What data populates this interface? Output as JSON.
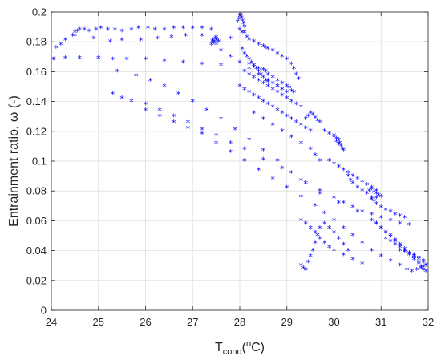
{
  "chart_data": {
    "type": "scatter",
    "title": "",
    "xlabel": {
      "main": "T",
      "sub": "cond",
      "sup": "o",
      "tail": "C)",
      "open": "("
    },
    "ylabel": "Entrainment ratio, ω (-)",
    "xlim": [
      24,
      32
    ],
    "ylim": [
      0,
      0.2
    ],
    "xticks": [
      "24",
      "25",
      "26",
      "27",
      "28",
      "29",
      "30",
      "31",
      "32"
    ],
    "yticks": [
      "0",
      "0.02",
      "0.04",
      "0.06",
      "0.08",
      "0.1",
      "0.12",
      "0.14",
      "0.16",
      "0.18",
      "0.2"
    ],
    "grid": true,
    "legend": "none",
    "marker": "*",
    "color": "#0000ff",
    "series": [
      {
        "x": [
          24.05,
          24.1,
          24.2,
          24.3,
          24.45,
          24.5,
          24.55,
          24.6,
          24.7,
          24.8,
          24.95,
          25.05,
          25.2,
          25.35,
          25.5,
          25.7,
          25.85,
          26.05,
          26.2,
          26.4,
          26.6,
          26.8,
          27.0,
          27.2,
          27.4,
          24.05,
          24.3,
          24.6,
          25.0,
          25.3,
          25.6,
          26.0,
          26.4,
          26.8,
          27.2,
          27.6,
          24.5,
          24.9,
          25.25,
          25.5,
          25.9,
          26.25,
          26.55,
          26.85,
          27.2,
          27.5,
          27.8,
          25.3,
          25.5,
          25.7,
          26.0,
          26.3,
          26.6,
          26.9,
          27.2,
          27.5,
          27.8,
          28.1,
          28.5,
          28.9,
          29.3,
          29.7,
          30.1,
          30.5,
          30.9,
          25.4,
          25.8,
          26.1,
          26.4,
          26.7,
          27.0,
          27.3,
          27.6,
          27.9,
          28.2,
          28.5,
          28.8,
          29.1,
          29.4,
          29.7,
          27.42,
          27.43,
          27.45,
          27.46,
          27.48,
          27.5,
          27.52,
          27.55,
          27.98,
          28.0,
          28.02,
          28.04,
          28.06,
          28.08,
          28.1,
          28.0,
          27.95,
          28.05,
          28.1,
          28.15,
          28.2,
          28.3,
          28.4,
          28.5,
          28.55,
          28.6,
          28.7,
          28.8,
          28.9,
          29.0,
          29.1,
          29.15,
          29.2,
          29.25,
          28.05,
          28.1,
          28.15,
          28.2,
          28.25,
          28.3,
          28.35,
          28.4,
          28.45,
          28.5,
          28.55,
          28.6,
          28.7,
          28.8,
          28.9,
          29.0,
          28.2,
          28.3,
          28.4,
          28.5,
          28.55,
          28.6,
          28.7,
          28.8,
          28.9,
          29.0,
          29.05,
          29.1,
          29.15,
          28.1,
          28.2,
          28.3,
          28.4,
          28.5,
          28.6,
          28.7,
          28.8,
          28.9,
          29.0,
          29.1,
          29.2,
          29.3,
          28.0,
          28.1,
          28.2,
          28.3,
          28.4,
          28.5,
          28.6,
          28.7,
          28.8,
          28.9,
          29.0,
          29.1,
          29.2,
          29.3,
          29.4,
          29.5,
          28.3,
          28.5,
          28.7,
          28.9,
          29.1,
          29.3,
          29.5,
          29.6,
          29.7,
          29.4,
          29.45,
          29.5,
          29.55,
          29.6,
          29.65,
          29.7,
          29.8,
          29.9,
          30.0,
          30.05,
          30.1,
          30.12,
          30.15,
          30.18,
          30.2,
          30.1,
          30.05,
          30.0,
          29.9,
          30.0,
          30.1,
          30.2,
          30.3,
          30.4,
          30.5,
          30.6,
          30.7,
          30.8,
          30.9,
          30.3,
          30.35,
          30.4,
          30.5,
          30.6,
          30.7,
          30.8,
          30.85,
          30.9,
          31.0,
          31.1,
          31.2,
          31.3,
          31.4,
          31.5,
          30.75,
          30.8,
          30.85,
          30.9,
          30.95,
          31.0,
          30.8,
          30.9,
          29.3,
          29.35,
          29.4,
          29.45,
          29.5,
          29.55,
          29.6,
          29.65,
          29.7,
          29.8,
          29.9,
          30.0,
          30.1,
          30.2,
          30.3,
          29.3,
          29.4,
          29.5,
          29.6,
          29.7,
          29.8,
          29.9,
          30.0,
          30.2,
          30.4,
          30.6,
          30.0,
          30.2,
          30.4,
          30.6,
          30.8,
          31.0,
          31.2,
          31.4,
          31.6,
          30.8,
          30.9,
          31.0,
          31.1,
          31.2,
          31.3,
          31.4,
          31.5,
          31.6,
          31.7,
          31.8,
          31.9,
          31.0,
          31.1,
          31.2,
          31.3,
          31.4,
          31.5,
          31.6,
          31.7,
          31.8,
          31.85,
          31.9,
          31.95,
          31.1,
          31.2,
          31.3,
          31.4,
          31.5,
          31.6,
          31.7,
          31.8,
          31.9,
          31.95,
          31.4,
          31.5,
          31.6,
          31.7,
          31.8,
          31.9,
          31.95,
          31.85,
          31.75,
          31.65,
          31.55,
          29.6,
          29.8,
          30.0,
          30.2,
          30.4,
          30.6,
          30.8,
          31.0,
          31.2,
          31.4,
          26.0,
          26.3,
          26.6,
          26.9,
          27.2,
          27.5,
          27.8,
          28.1,
          28.4,
          28.7,
          29.0,
          29.3,
          27.4,
          27.6,
          27.8,
          28.0,
          28.2,
          28.4,
          28.6,
          28.8
        ],
        "y": [
          0.168,
          0.176,
          0.178,
          0.181,
          0.184,
          0.186,
          0.187,
          0.188,
          0.188,
          0.187,
          0.188,
          0.189,
          0.188,
          0.188,
          0.187,
          0.188,
          0.189,
          0.189,
          0.188,
          0.188,
          0.189,
          0.189,
          0.189,
          0.189,
          0.188,
          0.168,
          0.169,
          0.169,
          0.169,
          0.168,
          0.168,
          0.168,
          0.167,
          0.166,
          0.165,
          0.164,
          0.184,
          0.182,
          0.18,
          0.181,
          0.181,
          0.182,
          0.183,
          0.184,
          0.184,
          0.183,
          0.182,
          0.145,
          0.142,
          0.14,
          0.138,
          0.134,
          0.13,
          0.126,
          0.121,
          0.117,
          0.112,
          0.108,
          0.101,
          0.095,
          0.087,
          0.08,
          0.072,
          0.066,
          0.058,
          0.16,
          0.157,
          0.154,
          0.15,
          0.145,
          0.14,
          0.134,
          0.128,
          0.121,
          0.114,
          0.107,
          0.1,
          0.092,
          0.085,
          0.078,
          0.18,
          0.181,
          0.179,
          0.18,
          0.182,
          0.178,
          0.181,
          0.18,
          0.195,
          0.197,
          0.198,
          0.196,
          0.194,
          0.192,
          0.19,
          0.188,
          0.193,
          0.186,
          0.186,
          0.183,
          0.181,
          0.18,
          0.178,
          0.177,
          0.176,
          0.175,
          0.174,
          0.172,
          0.17,
          0.168,
          0.165,
          0.162,
          0.158,
          0.155,
          0.175,
          0.172,
          0.17,
          0.168,
          0.166,
          0.164,
          0.162,
          0.16,
          0.158,
          0.156,
          0.154,
          0.153,
          0.152,
          0.15,
          0.148,
          0.146,
          0.165,
          0.163,
          0.162,
          0.161,
          0.16,
          0.158,
          0.156,
          0.154,
          0.152,
          0.15,
          0.149,
          0.147,
          0.146,
          0.16,
          0.158,
          0.156,
          0.154,
          0.152,
          0.15,
          0.148,
          0.146,
          0.144,
          0.142,
          0.14,
          0.138,
          0.136,
          0.15,
          0.148,
          0.146,
          0.144,
          0.142,
          0.14,
          0.138,
          0.136,
          0.134,
          0.132,
          0.13,
          0.128,
          0.126,
          0.124,
          0.122,
          0.12,
          0.132,
          0.128,
          0.124,
          0.12,
          0.116,
          0.112,
          0.108,
          0.104,
          0.1,
          0.128,
          0.13,
          0.132,
          0.131,
          0.129,
          0.127,
          0.126,
          0.12,
          0.118,
          0.116,
          0.115,
          0.114,
          0.112,
          0.11,
          0.108,
          0.107,
          0.111,
          0.113,
          0.117,
          0.1,
          0.098,
          0.096,
          0.094,
          0.092,
          0.09,
          0.088,
          0.086,
          0.084,
          0.082,
          0.08,
          0.09,
          0.087,
          0.085,
          0.082,
          0.08,
          0.078,
          0.075,
          0.073,
          0.071,
          0.069,
          0.067,
          0.066,
          0.064,
          0.063,
          0.062,
          0.08,
          0.081,
          0.079,
          0.078,
          0.077,
          0.076,
          0.074,
          0.075,
          0.03,
          0.028,
          0.027,
          0.032,
          0.036,
          0.04,
          0.045,
          0.05,
          0.055,
          0.058,
          0.055,
          0.052,
          0.048,
          0.044,
          0.04,
          0.06,
          0.058,
          0.055,
          0.052,
          0.048,
          0.045,
          0.042,
          0.04,
          0.037,
          0.034,
          0.031,
          0.075,
          0.072,
          0.069,
          0.066,
          0.064,
          0.062,
          0.06,
          0.058,
          0.057,
          0.06,
          0.058,
          0.055,
          0.052,
          0.05,
          0.047,
          0.044,
          0.041,
          0.038,
          0.035,
          0.032,
          0.029,
          0.055,
          0.052,
          0.049,
          0.046,
          0.043,
          0.04,
          0.037,
          0.034,
          0.031,
          0.029,
          0.027,
          0.026,
          0.048,
          0.046,
          0.044,
          0.042,
          0.04,
          0.038,
          0.036,
          0.034,
          0.032,
          0.03,
          0.04,
          0.039,
          0.038,
          0.037,
          0.035,
          0.033,
          0.03,
          0.028,
          0.027,
          0.026,
          0.027,
          0.07,
          0.065,
          0.06,
          0.055,
          0.05,
          0.045,
          0.04,
          0.036,
          0.033,
          0.03,
          0.134,
          0.13,
          0.126,
          0.122,
          0.118,
          0.112,
          0.106,
          0.1,
          0.094,
          0.088,
          0.082,
          0.076,
          0.178,
          0.174,
          0.17,
          0.166,
          0.162,
          0.158,
          0.154,
          0.15
        ]
      }
    ]
  }
}
